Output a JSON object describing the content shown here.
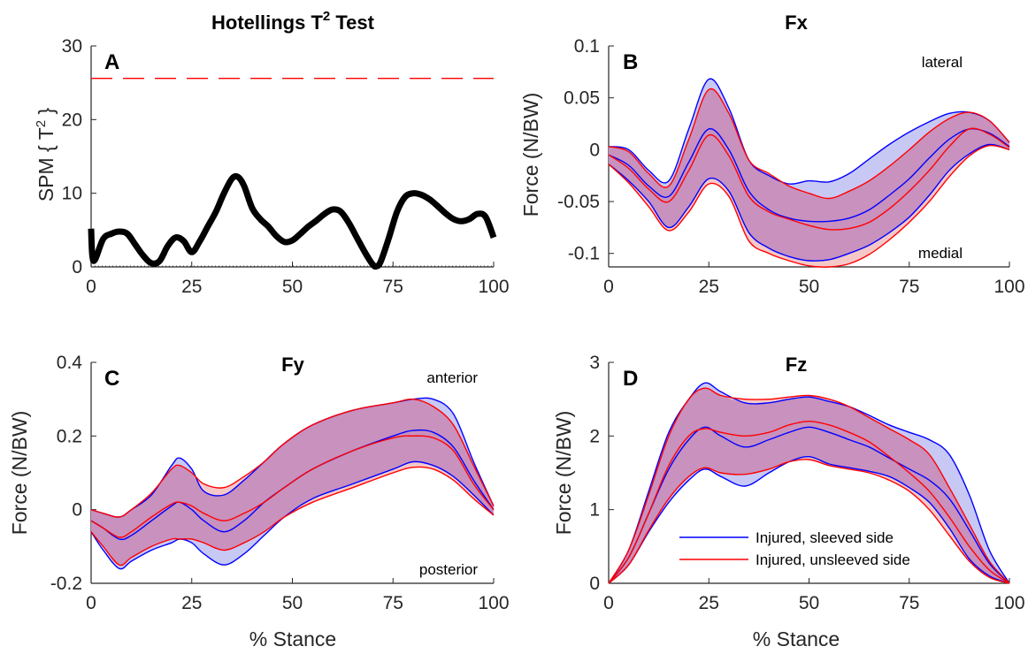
{
  "colors": {
    "sleeved": "#0000FF",
    "unsleeved": "#FF0000",
    "overlap_fill": "#C891BE",
    "sleeved_fill": "#C8C8F5",
    "unsleeved_fill": "#F5C8C8",
    "spm_line": "#000000",
    "threshold": "#FF0000"
  },
  "chart_data": [
    {
      "panel": "A",
      "type": "line",
      "title": "Hotellings T",
      "title_sup": "2",
      "title_end": " Test",
      "ylabel": "SPM { T",
      "ylabel_sup": "2",
      "ylabel_end": " }",
      "xlabel": "",
      "xlim": [
        0,
        100
      ],
      "ylim": [
        0,
        30
      ],
      "xticks": [
        "0",
        "25",
        "50",
        "75",
        "100"
      ],
      "yticks": [
        "0",
        "10",
        "20",
        "30"
      ],
      "threshold": 25.6,
      "series": [
        {
          "x": [
            0,
            0.3,
            1,
            3,
            5,
            7,
            9,
            11,
            13,
            15,
            17,
            19,
            21,
            23,
            25,
            27,
            29,
            31,
            33,
            35,
            36.5,
            38,
            40,
            42,
            44,
            46,
            48,
            50,
            52,
            54,
            56,
            58,
            60,
            62,
            64,
            66,
            68,
            70,
            71,
            72,
            74,
            76,
            78,
            80,
            82,
            84,
            86,
            88,
            90,
            92,
            94,
            96,
            98,
            100
          ],
          "values": [
            5.2,
            1.5,
            1,
            3.8,
            4.5,
            4.8,
            4.5,
            3,
            1.5,
            0.5,
            0.8,
            2.8,
            4,
            3.5,
            2,
            3.5,
            5.5,
            7.5,
            10,
            12,
            12.2,
            11,
            8,
            6.5,
            5.5,
            4.2,
            3.4,
            3.6,
            4.5,
            5.5,
            6.3,
            7.2,
            7.8,
            7.5,
            6,
            4,
            2,
            0.3,
            0.1,
            0.8,
            4,
            7.5,
            9.5,
            10,
            9.8,
            9.2,
            8.3,
            7.3,
            6.5,
            6.2,
            6.5,
            7.2,
            6.8,
            4
          ]
        }
      ]
    },
    {
      "panel": "B",
      "type": "area",
      "title": "Fx",
      "ylabel": "Force (N/BW)",
      "xlabel": "",
      "xlim": [
        0,
        100
      ],
      "ylim": [
        -0.113,
        0.1
      ],
      "xticks": [
        "0",
        "25",
        "50",
        "75",
        "100"
      ],
      "yticks": [
        "-0.1",
        "-0.05",
        "0",
        "0.05",
        "0.1"
      ],
      "ytick_values": [
        -0.1,
        -0.05,
        0,
        0.05,
        0.1
      ],
      "annotation_top": "lateral",
      "annotation_bottom": "medial",
      "x": [
        0,
        5,
        10,
        15,
        20,
        25,
        30,
        35,
        40,
        45,
        50,
        55,
        60,
        65,
        70,
        75,
        80,
        85,
        90,
        95,
        100
      ],
      "sleeved": {
        "mean": [
          -0.005,
          -0.015,
          -0.035,
          -0.045,
          -0.012,
          0.02,
          0.0,
          -0.04,
          -0.058,
          -0.066,
          -0.069,
          -0.069,
          -0.066,
          -0.058,
          -0.044,
          -0.028,
          -0.008,
          0.01,
          0.02,
          0.016,
          0.003
        ],
        "upper": [
          0.003,
          0.0,
          -0.02,
          -0.03,
          0.02,
          0.068,
          0.04,
          -0.01,
          -0.025,
          -0.033,
          -0.03,
          -0.031,
          -0.023,
          -0.009,
          0.005,
          0.017,
          0.027,
          0.035,
          0.036,
          0.028,
          0.007
        ],
        "lower": [
          -0.014,
          -0.03,
          -0.05,
          -0.075,
          -0.055,
          -0.028,
          -0.04,
          -0.08,
          -0.095,
          -0.103,
          -0.107,
          -0.106,
          -0.1,
          -0.092,
          -0.08,
          -0.065,
          -0.044,
          -0.02,
          -0.004,
          0.005,
          0.0
        ]
      },
      "unsleeved": {
        "mean": [
          -0.005,
          -0.018,
          -0.038,
          -0.05,
          -0.02,
          0.014,
          -0.006,
          -0.045,
          -0.06,
          -0.067,
          -0.073,
          -0.077,
          -0.076,
          -0.07,
          -0.057,
          -0.04,
          -0.02,
          0.003,
          0.02,
          0.015,
          0.002
        ],
        "upper": [
          0.003,
          -0.002,
          -0.023,
          -0.035,
          0.01,
          0.058,
          0.035,
          -0.01,
          -0.023,
          -0.035,
          -0.042,
          -0.047,
          -0.04,
          -0.03,
          -0.016,
          0.0,
          0.017,
          0.03,
          0.036,
          0.028,
          0.007
        ],
        "lower": [
          -0.014,
          -0.032,
          -0.055,
          -0.078,
          -0.06,
          -0.033,
          -0.045,
          -0.088,
          -0.1,
          -0.107,
          -0.112,
          -0.113,
          -0.11,
          -0.101,
          -0.087,
          -0.07,
          -0.05,
          -0.026,
          -0.006,
          0.004,
          0.0
        ]
      }
    },
    {
      "panel": "C",
      "type": "area",
      "title": "Fy",
      "ylabel": "Force (N/BW)",
      "xlabel": "% Stance",
      "xlim": [
        0,
        100
      ],
      "ylim": [
        -0.2,
        0.4
      ],
      "xticks": [
        "0",
        "25",
        "50",
        "75",
        "100"
      ],
      "yticks": [
        "-0.2",
        "0",
        "0.2",
        "0.4"
      ],
      "ytick_values": [
        -0.2,
        0,
        0.2,
        0.4
      ],
      "annotation_top": "anterior",
      "annotation_bottom": "posterior",
      "x": [
        0,
        3,
        7,
        10,
        15,
        20,
        22,
        25,
        28,
        33,
        38,
        43,
        48,
        55,
        65,
        75,
        80,
        85,
        90,
        95,
        100
      ],
      "sleeved": {
        "mean": [
          -0.03,
          -0.05,
          -0.08,
          -0.07,
          -0.03,
          0.01,
          0.02,
          0.0,
          -0.03,
          -0.06,
          -0.03,
          0.02,
          0.06,
          0.11,
          0.16,
          0.2,
          0.215,
          0.21,
          0.17,
          0.08,
          0.0
        ],
        "upper": [
          0.0,
          -0.01,
          -0.02,
          0.0,
          0.04,
          0.12,
          0.14,
          0.11,
          0.05,
          0.04,
          0.08,
          0.13,
          0.18,
          0.23,
          0.27,
          0.29,
          0.3,
          0.3,
          0.26,
          0.13,
          0.01
        ],
        "lower": [
          -0.06,
          -0.11,
          -0.16,
          -0.14,
          -0.11,
          -0.09,
          -0.08,
          -0.09,
          -0.12,
          -0.15,
          -0.12,
          -0.07,
          -0.02,
          0.03,
          0.07,
          0.11,
          0.13,
          0.12,
          0.09,
          0.04,
          -0.015
        ]
      },
      "unsleeved": {
        "mean": [
          -0.03,
          -0.05,
          -0.075,
          -0.06,
          -0.02,
          0.015,
          0.02,
          0.01,
          -0.01,
          -0.03,
          -0.01,
          0.02,
          0.06,
          0.11,
          0.16,
          0.195,
          0.2,
          0.195,
          0.16,
          0.07,
          0.0
        ],
        "upper": [
          0.0,
          -0.01,
          -0.02,
          0.0,
          0.045,
          0.11,
          0.12,
          0.1,
          0.07,
          0.06,
          0.09,
          0.13,
          0.18,
          0.23,
          0.27,
          0.29,
          0.3,
          0.28,
          0.23,
          0.12,
          0.01
        ],
        "lower": [
          -0.06,
          -0.1,
          -0.15,
          -0.13,
          -0.1,
          -0.08,
          -0.08,
          -0.08,
          -0.09,
          -0.11,
          -0.09,
          -0.06,
          -0.02,
          0.02,
          0.06,
          0.1,
          0.115,
          0.11,
          0.08,
          0.03,
          -0.015
        ]
      }
    },
    {
      "panel": "D",
      "type": "area",
      "title": "Fz",
      "ylabel": "Force (N/BW)",
      "xlabel": "% Stance",
      "xlim": [
        0,
        100
      ],
      "ylim": [
        0,
        3
      ],
      "xticks": [
        "0",
        "25",
        "50",
        "75",
        "100"
      ],
      "yticks": [
        "0",
        "1",
        "2",
        "3"
      ],
      "ytick_values": [
        0,
        1,
        2,
        3
      ],
      "legend": {
        "position": "lower-center",
        "entries": [
          "Injured, sleeved side",
          "Injured, unsleeved side"
        ]
      },
      "x": [
        0,
        5,
        10,
        15,
        20,
        24,
        28,
        34,
        40,
        45,
        50,
        55,
        60,
        65,
        70,
        75,
        80,
        85,
        90,
        95,
        100
      ],
      "sleeved": {
        "mean": [
          0.0,
          0.35,
          0.95,
          1.55,
          1.95,
          2.12,
          2.0,
          1.85,
          1.95,
          2.05,
          2.12,
          2.05,
          1.95,
          1.85,
          1.7,
          1.55,
          1.4,
          1.15,
          0.72,
          0.27,
          0.0
        ],
        "upper": [
          0.0,
          0.45,
          1.25,
          2.05,
          2.5,
          2.72,
          2.6,
          2.45,
          2.45,
          2.5,
          2.53,
          2.47,
          2.4,
          2.28,
          2.15,
          2.05,
          1.95,
          1.75,
          1.2,
          0.45,
          0.0
        ],
        "lower": [
          0.0,
          0.25,
          0.7,
          1.1,
          1.4,
          1.55,
          1.45,
          1.32,
          1.5,
          1.65,
          1.72,
          1.62,
          1.57,
          1.52,
          1.45,
          1.3,
          1.1,
          0.75,
          0.33,
          0.1,
          0.0
        ]
      },
      "unsleeved": {
        "mean": [
          0.0,
          0.35,
          0.95,
          1.6,
          2.0,
          2.1,
          2.05,
          2.0,
          2.05,
          2.15,
          2.2,
          2.15,
          2.05,
          1.92,
          1.72,
          1.5,
          1.25,
          0.9,
          0.5,
          0.18,
          0.0
        ],
        "upper": [
          0.0,
          0.45,
          1.2,
          2.0,
          2.5,
          2.65,
          2.55,
          2.5,
          2.5,
          2.53,
          2.55,
          2.5,
          2.4,
          2.25,
          2.1,
          1.95,
          1.75,
          1.3,
          0.8,
          0.3,
          0.0
        ],
        "lower": [
          0.0,
          0.25,
          0.72,
          1.15,
          1.45,
          1.57,
          1.5,
          1.48,
          1.55,
          1.65,
          1.68,
          1.6,
          1.55,
          1.5,
          1.4,
          1.25,
          1.0,
          0.65,
          0.3,
          0.08,
          0.0
        ]
      }
    }
  ]
}
